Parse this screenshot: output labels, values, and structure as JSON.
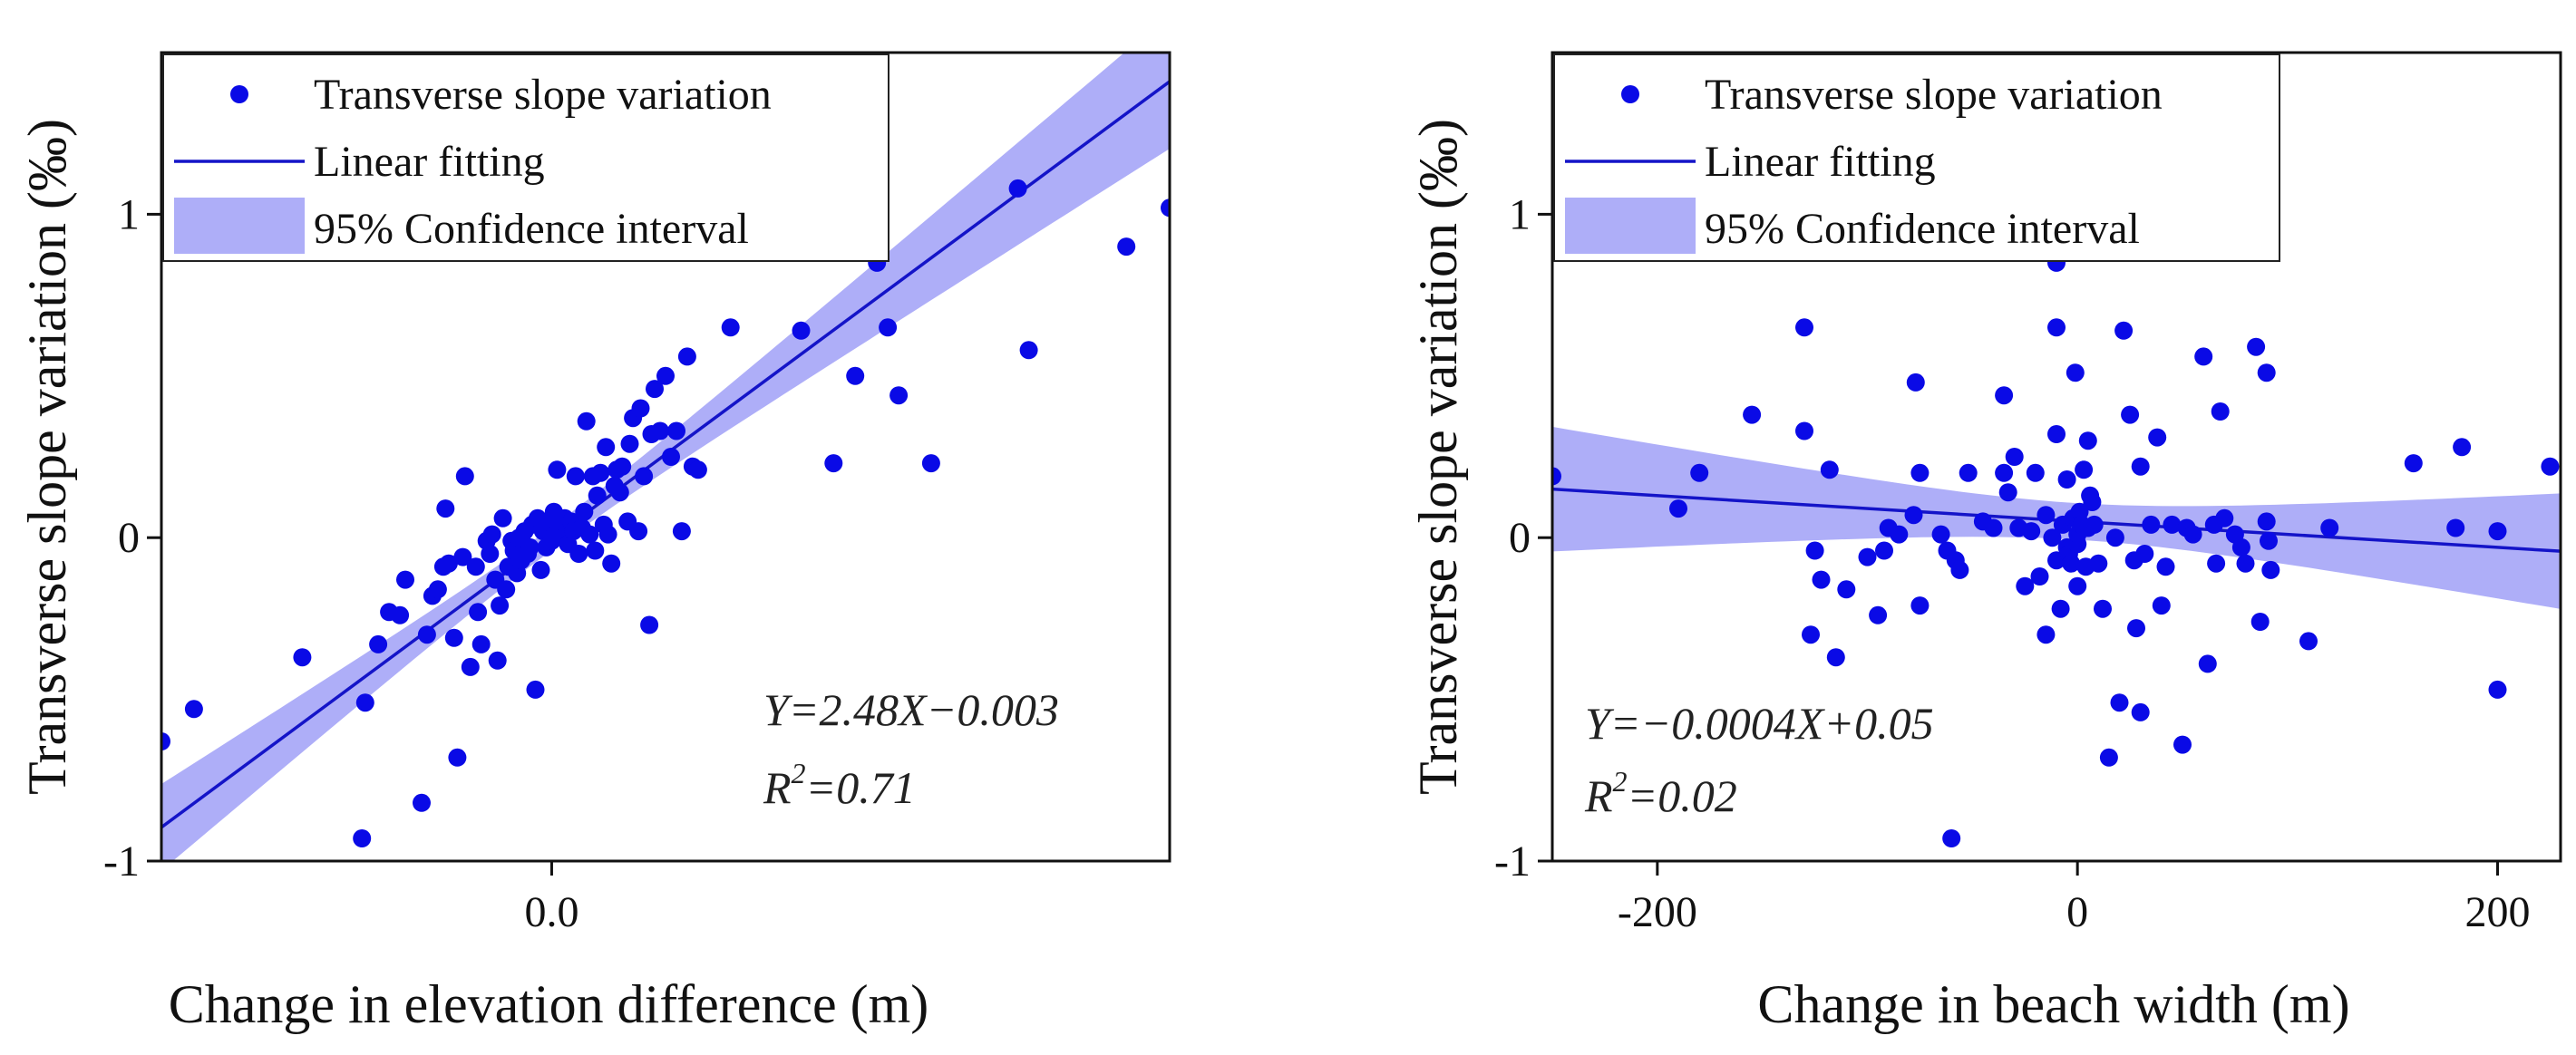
{
  "colors": {
    "point": "#0a0ae6",
    "line": "#1414c8",
    "band": "#aeaef8",
    "axis": "#111111"
  },
  "chart_data": [
    {
      "type": "scatter",
      "title": "",
      "xlabel": "Change in elevation difference (m)",
      "ylabel": "Transverse slope variation (‰)",
      "xlim": [
        -0.36,
        0.57
      ],
      "ylim": [
        -1,
        1.5
      ],
      "x_ticks": [
        {
          "value": 0,
          "label": "0.0"
        }
      ],
      "y_ticks": [
        {
          "value": -1,
          "label": "-1"
        },
        {
          "value": 0,
          "label": "0"
        },
        {
          "value": 1,
          "label": "1"
        }
      ],
      "legend": {
        "position": "top-left",
        "items": [
          {
            "kind": "marker",
            "label": "Transverse slope variation"
          },
          {
            "kind": "line",
            "label": "Linear fitting"
          },
          {
            "kind": "band",
            "label": "95% Confidence interval"
          }
        ]
      },
      "equation": "Y=2.48X−0.003",
      "r2": {
        "prefix": "R",
        "sup": "2",
        "value": "=0.71"
      },
      "annotation_position": "bottom-right",
      "fit": {
        "slope": 2.48,
        "intercept": -0.003
      },
      "ci": {
        "n": 110,
        "mean_x": 0.0,
        "sxx": 1.1,
        "tval": 1.98,
        "sresid": 0.19
      },
      "series": [
        {
          "name": "Transverse slope variation",
          "points": [
            [
              -0.36,
              -0.63
            ],
            [
              -0.33,
              -0.53
            ],
            [
              -0.23,
              -0.37
            ],
            [
              -0.175,
              -0.93
            ],
            [
              -0.172,
              -0.51
            ],
            [
              -0.16,
              -0.33
            ],
            [
              -0.15,
              -0.23
            ],
            [
              -0.14,
              -0.24
            ],
            [
              -0.135,
              -0.13
            ],
            [
              -0.12,
              -0.82
            ],
            [
              -0.115,
              -0.3
            ],
            [
              -0.11,
              -0.18
            ],
            [
              -0.105,
              -0.16
            ],
            [
              -0.1,
              -0.09
            ],
            [
              -0.098,
              0.09
            ],
            [
              -0.095,
              -0.08
            ],
            [
              -0.09,
              -0.31
            ],
            [
              -0.087,
              -0.68
            ],
            [
              -0.082,
              -0.06
            ],
            [
              -0.08,
              0.19
            ],
            [
              -0.075,
              -0.4
            ],
            [
              -0.07,
              -0.09
            ],
            [
              -0.068,
              -0.23
            ],
            [
              -0.065,
              -0.33
            ],
            [
              -0.06,
              -0.01
            ],
            [
              -0.057,
              -0.05
            ],
            [
              -0.055,
              0.01
            ],
            [
              -0.052,
              -0.13
            ],
            [
              -0.05,
              -0.38
            ],
            [
              -0.048,
              -0.21
            ],
            [
              -0.045,
              0.06
            ],
            [
              -0.042,
              -0.16
            ],
            [
              -0.04,
              -0.09
            ],
            [
              -0.037,
              -0.01
            ],
            [
              -0.035,
              -0.04
            ],
            [
              -0.032,
              -0.11
            ],
            [
              -0.03,
              0.0
            ],
            [
              -0.028,
              -0.07
            ],
            [
              -0.025,
              0.02
            ],
            [
              -0.022,
              -0.05
            ],
            [
              -0.02,
              -0.03
            ],
            [
              -0.018,
              0.04
            ],
            [
              -0.015,
              -0.47
            ],
            [
              -0.013,
              0.06
            ],
            [
              -0.01,
              -0.1
            ],
            [
              -0.008,
              0.02
            ],
            [
              -0.005,
              -0.03
            ],
            [
              -0.003,
              0.05
            ],
            [
              0.0,
              -0.01
            ],
            [
              0.002,
              0.08
            ],
            [
              0.003,
              0.01
            ],
            [
              0.005,
              0.21
            ],
            [
              0.007,
              0.03
            ],
            [
              0.01,
              0.0
            ],
            [
              0.012,
              0.06
            ],
            [
              0.015,
              -0.02
            ],
            [
              0.018,
              0.05
            ],
            [
              0.02,
              0.02
            ],
            [
              0.022,
              0.19
            ],
            [
              0.025,
              -0.05
            ],
            [
              0.028,
              0.03
            ],
            [
              0.03,
              0.08
            ],
            [
              0.032,
              0.36
            ],
            [
              0.035,
              0.01
            ],
            [
              0.038,
              0.19
            ],
            [
              0.04,
              -0.04
            ],
            [
              0.042,
              0.13
            ],
            [
              0.045,
              0.2
            ],
            [
              0.048,
              0.04
            ],
            [
              0.05,
              0.28
            ],
            [
              0.052,
              0.01
            ],
            [
              0.055,
              -0.08
            ],
            [
              0.058,
              0.16
            ],
            [
              0.06,
              0.21
            ],
            [
              0.063,
              0.14
            ],
            [
              0.065,
              0.22
            ],
            [
              0.07,
              0.05
            ],
            [
              0.072,
              0.29
            ],
            [
              0.075,
              0.37
            ],
            [
              0.08,
              0.02
            ],
            [
              0.082,
              0.4
            ],
            [
              0.085,
              0.19
            ],
            [
              0.09,
              -0.27
            ],
            [
              0.092,
              0.32
            ],
            [
              0.095,
              0.46
            ],
            [
              0.1,
              0.33
            ],
            [
              0.105,
              0.5
            ],
            [
              0.11,
              0.25
            ],
            [
              0.115,
              0.33
            ],
            [
              0.12,
              0.02
            ],
            [
              0.125,
              0.56
            ],
            [
              0.13,
              0.22
            ],
            [
              0.135,
              0.21
            ],
            [
              0.165,
              0.65
            ],
            [
              0.23,
              0.64
            ],
            [
              0.26,
              0.23
            ],
            [
              0.28,
              0.5
            ],
            [
              0.3,
              0.85
            ],
            [
              0.31,
              0.65
            ],
            [
              0.32,
              0.44
            ],
            [
              0.35,
              0.23
            ],
            [
              0.43,
              1.08
            ],
            [
              0.44,
              0.58
            ],
            [
              0.53,
              0.9
            ],
            [
              0.57,
              1.02
            ]
          ]
        }
      ]
    },
    {
      "type": "scatter",
      "title": "",
      "xlabel": "Change in beach width (m)",
      "ylabel": "Transverse slope variation (‰)",
      "xlim": [
        -250,
        230
      ],
      "ylim": [
        -1,
        1.5
      ],
      "x_ticks": [
        {
          "value": -200,
          "label": "-200"
        },
        {
          "value": 0,
          "label": "0"
        },
        {
          "value": 200,
          "label": "200"
        }
      ],
      "y_ticks": [
        {
          "value": -1,
          "label": "-1"
        },
        {
          "value": 0,
          "label": "0"
        },
        {
          "value": 1,
          "label": "1"
        }
      ],
      "legend": {
        "position": "top-left",
        "items": [
          {
            "kind": "marker",
            "label": "Transverse slope variation"
          },
          {
            "kind": "line",
            "label": "Linear fitting"
          },
          {
            "kind": "band",
            "label": "95% Confidence interval"
          }
        ]
      },
      "equation": "Y=−0.0004X+0.05",
      "r2": {
        "prefix": "R",
        "sup": "2",
        "value": "=0.02"
      },
      "annotation_position": "bottom-left",
      "fit": {
        "slope": -0.0004,
        "intercept": 0.05
      },
      "ci": {
        "n": 110,
        "mean_x": 0.0,
        "sxx": 650000,
        "tval": 1.98,
        "sresid": 0.3
      },
      "series": [
        {
          "name": "Transverse slope variation",
          "points": [
            [
              -250,
              0.19
            ],
            [
              -190,
              0.09
            ],
            [
              -180,
              0.2
            ],
            [
              -155,
              0.38
            ],
            [
              -130,
              0.65
            ],
            [
              -130,
              0.33
            ],
            [
              -127,
              -0.3
            ],
            [
              -125,
              -0.04
            ],
            [
              -122,
              -0.13
            ],
            [
              -118,
              0.21
            ],
            [
              -115,
              -0.37
            ],
            [
              -110,
              -0.16
            ],
            [
              -100,
              -0.06
            ],
            [
              -95,
              -0.24
            ],
            [
              -92,
              -0.04
            ],
            [
              -90,
              0.03
            ],
            [
              -85,
              0.01
            ],
            [
              -78,
              0.07
            ],
            [
              -77,
              0.48
            ],
            [
              -75,
              0.2
            ],
            [
              -75,
              -0.21
            ],
            [
              -65,
              0.01
            ],
            [
              -62,
              -0.04
            ],
            [
              -60,
              -0.93
            ],
            [
              -58,
              -0.07
            ],
            [
              -56,
              -0.1
            ],
            [
              -52,
              0.2
            ],
            [
              -45,
              0.05
            ],
            [
              -40,
              0.03
            ],
            [
              -35,
              0.44
            ],
            [
              -35,
              0.2
            ],
            [
              -33,
              0.14
            ],
            [
              -30,
              0.25
            ],
            [
              -28,
              0.03
            ],
            [
              -25,
              -0.15
            ],
            [
              -22,
              0.02
            ],
            [
              -20,
              0.2
            ],
            [
              -18,
              -0.12
            ],
            [
              -15,
              0.07
            ],
            [
              -15,
              -0.3
            ],
            [
              -12,
              0.0
            ],
            [
              -10,
              -0.07
            ],
            [
              -10,
              0.32
            ],
            [
              -10,
              0.85
            ],
            [
              -10,
              0.65
            ],
            [
              -8,
              -0.22
            ],
            [
              -7,
              0.04
            ],
            [
              -5,
              -0.03
            ],
            [
              -5,
              0.18
            ],
            [
              -4,
              -0.05
            ],
            [
              -3,
              -0.08
            ],
            [
              -2,
              0.06
            ],
            [
              -1,
              0.51
            ],
            [
              0,
              -0.02
            ],
            [
              0,
              0.01
            ],
            [
              0,
              -0.15
            ],
            [
              1,
              0.08
            ],
            [
              2,
              0.04
            ],
            [
              3,
              0.21
            ],
            [
              4,
              -0.09
            ],
            [
              5,
              0.3
            ],
            [
              5,
              0.03
            ],
            [
              6,
              0.13
            ],
            [
              7,
              0.11
            ],
            [
              8,
              0.04
            ],
            [
              10,
              -0.08
            ],
            [
              12,
              -0.22
            ],
            [
              15,
              -0.68
            ],
            [
              18,
              0.0
            ],
            [
              20,
              -0.51
            ],
            [
              22,
              0.64
            ],
            [
              25,
              0.38
            ],
            [
              27,
              -0.07
            ],
            [
              28,
              -0.28
            ],
            [
              30,
              0.22
            ],
            [
              30,
              -0.54
            ],
            [
              32,
              -0.05
            ],
            [
              35,
              0.04
            ],
            [
              38,
              0.31
            ],
            [
              40,
              -0.21
            ],
            [
              42,
              -0.09
            ],
            [
              45,
              0.04
            ],
            [
              50,
              -0.64
            ],
            [
              52,
              0.03
            ],
            [
              55,
              0.01
            ],
            [
              60,
              0.56
            ],
            [
              62,
              -0.39
            ],
            [
              65,
              0.04
            ],
            [
              66,
              -0.08
            ],
            [
              68,
              0.39
            ],
            [
              70,
              0.06
            ],
            [
              75,
              0.01
            ],
            [
              78,
              -0.03
            ],
            [
              80,
              -0.08
            ],
            [
              85,
              0.59
            ],
            [
              87,
              -0.26
            ],
            [
              90,
              0.51
            ],
            [
              90,
              0.05
            ],
            [
              91,
              -0.01
            ],
            [
              92,
              -0.1
            ],
            [
              110,
              -0.32
            ],
            [
              120,
              0.03
            ],
            [
              160,
              0.23
            ],
            [
              180,
              0.03
            ],
            [
              183,
              0.28
            ],
            [
              200,
              -0.47
            ],
            [
              200,
              0.02
            ],
            [
              225,
              0.22
            ]
          ]
        }
      ]
    }
  ]
}
